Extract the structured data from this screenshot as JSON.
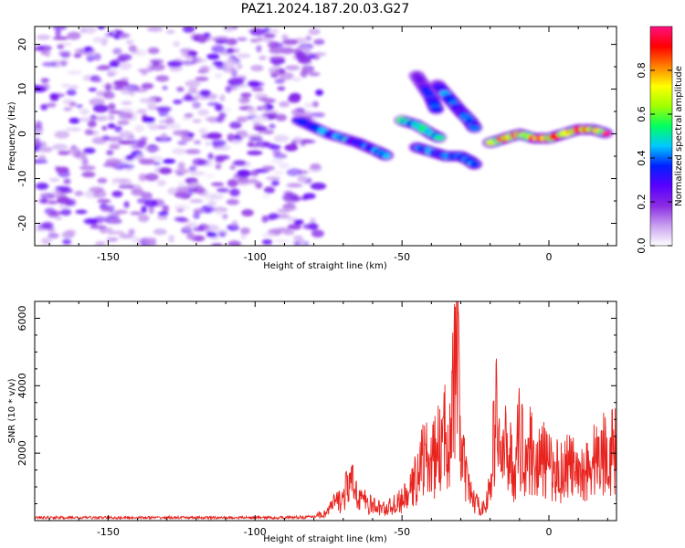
{
  "title": "PAZ1.2024.187.20.03.G27",
  "chart_data": [
    {
      "type": "heatmap",
      "xlabel": "Height of straight line (km)",
      "ylabel": "Frequency (Hz)",
      "xlim": [
        -175,
        23
      ],
      "ylim": [
        -25,
        24
      ],
      "xticks": [
        -150,
        -100,
        -50,
        0
      ],
      "yticks": [
        -20,
        -10,
        0,
        10,
        20
      ],
      "colorbar": {
        "label": "Normalized spectral amplitude",
        "range": [
          0.0,
          1.0
        ],
        "ticks": [
          0.0,
          0.2,
          0.4,
          0.6,
          0.8
        ],
        "colors": [
          "#ffffff",
          "#c9a0f0",
          "#8a2be2",
          "#5a00ff",
          "#0020ff",
          "#00c8ff",
          "#00ff60",
          "#a0ff00",
          "#ffff00",
          "#ff8000",
          "#ff0000",
          "#ff1080"
        ]
      },
      "features": [
        {
          "type": "noise",
          "x_range": [
            -175,
            -78
          ],
          "y_range": [
            -25,
            24
          ],
          "amplitude": 0.15
        },
        {
          "type": "ridge",
          "x": [
            -85,
            -75,
            -65,
            -58,
            -55
          ],
          "y": [
            3,
            0,
            -2,
            -4,
            -5
          ],
          "amplitude": 0.45
        },
        {
          "type": "ridge",
          "x": [
            -50,
            -45,
            -40,
            -37
          ],
          "y": [
            3,
            2,
            0,
            -1
          ],
          "amplitude": 0.55
        },
        {
          "type": "ridge",
          "x": [
            -45,
            -40,
            -35,
            -30,
            -27,
            -25
          ],
          "y": [
            -3,
            -4,
            -5,
            -5,
            -6,
            -7
          ],
          "amplitude": 0.4
        },
        {
          "type": "ridge",
          "x": [
            -45,
            -40,
            -38
          ],
          "y": [
            13,
            8,
            5
          ],
          "amplitude": 0.35
        },
        {
          "type": "ridge",
          "x": [
            -38,
            -34,
            -30,
            -27,
            -25
          ],
          "y": [
            11,
            8,
            5,
            3,
            1
          ],
          "amplitude": 0.4
        },
        {
          "type": "ridge",
          "x": [
            -20,
            -15,
            -10,
            -5,
            0,
            5,
            10,
            15,
            20
          ],
          "y": [
            -2,
            -1,
            0,
            -1,
            -1,
            0,
            1,
            1,
            0
          ],
          "amplitude": 0.9
        }
      ]
    },
    {
      "type": "line",
      "xlabel": "Height of straight line (km)",
      "ylabel": "SNR (10 * v/v)",
      "xlim": [
        -175,
        23
      ],
      "ylim": [
        0,
        6500
      ],
      "xticks": [
        -150,
        -100,
        -50,
        0
      ],
      "yticks": [
        2000,
        4000,
        6000
      ],
      "series": [
        {
          "color": "#e8231e",
          "x": [
            -175,
            -150,
            -125,
            -100,
            -90,
            -80,
            -76,
            -73,
            -70,
            -68,
            -65,
            -62,
            -60,
            -57,
            -55,
            -52,
            -50,
            -47,
            -45,
            -43,
            -40,
            -38,
            -36,
            -34,
            -32,
            -31,
            -30,
            -28,
            -26,
            -24,
            -22,
            -20,
            -18,
            -16,
            -14,
            -12,
            -10,
            -8,
            -6,
            -4,
            -2,
            0,
            2,
            4,
            6,
            8,
            10,
            12,
            14,
            16,
            18,
            20,
            23
          ],
          "y": [
            80,
            80,
            80,
            80,
            80,
            100,
            300,
            700,
            900,
            1600,
            1100,
            700,
            600,
            500,
            500,
            700,
            800,
            1200,
            1800,
            2600,
            2300,
            2800,
            3200,
            3800,
            5800,
            6500,
            3000,
            1500,
            900,
            600,
            500,
            1300,
            4500,
            2300,
            3200,
            1900,
            3400,
            2700,
            2900,
            2300,
            2500,
            2200,
            2100,
            2000,
            2300,
            2200,
            1600,
            2100,
            2200,
            2600,
            2700,
            2900,
            2800
          ]
        }
      ]
    }
  ]
}
